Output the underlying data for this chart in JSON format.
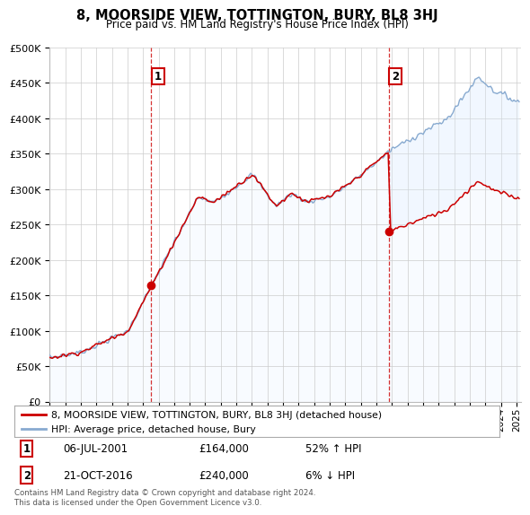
{
  "title": "8, MOORSIDE VIEW, TOTTINGTON, BURY, BL8 3HJ",
  "subtitle": "Price paid vs. HM Land Registry's House Price Index (HPI)",
  "legend_line1": "8, MOORSIDE VIEW, TOTTINGTON, BURY, BL8 3HJ (detached house)",
  "legend_line2": "HPI: Average price, detached house, Bury",
  "annotation1_date": "06-JUL-2001",
  "annotation1_price": "£164,000",
  "annotation1_pct": "52% ↑ HPI",
  "annotation2_date": "21-OCT-2016",
  "annotation2_price": "£240,000",
  "annotation2_pct": "6% ↓ HPI",
  "footer": "Contains HM Land Registry data © Crown copyright and database right 2024.\nThis data is licensed under the Open Government Licence v3.0.",
  "sale1_x": 2001.52,
  "sale1_y": 164000,
  "sale2_x": 2016.8,
  "sale2_y": 240000,
  "red_color": "#cc0000",
  "blue_color": "#88aad0",
  "blue_fill": "#ddeeff",
  "ylim": [
    0,
    500000
  ],
  "xlim_start": 1995.0,
  "xlim_end": 2025.3,
  "background_color": "#ffffff"
}
